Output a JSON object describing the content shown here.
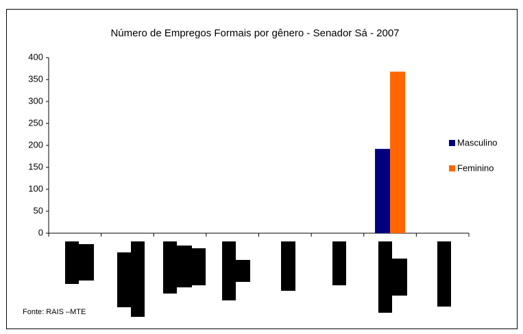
{
  "chart_data": {
    "type": "bar",
    "title": "Número de Empregos Formais por gênero - Senador Sá - 2007",
    "categories": [
      null,
      null,
      null,
      null,
      null,
      null,
      null,
      null
    ],
    "series": [
      {
        "name": "Masculino",
        "color": "#000080",
        "values": [
          0,
          0,
          0,
          0,
          0,
          0,
          192,
          0
        ]
      },
      {
        "name": "Feminino",
        "color": "#ff6600",
        "values": [
          0,
          0,
          0,
          0,
          0,
          0,
          368,
          0
        ]
      }
    ],
    "ylim": [
      0,
      400
    ],
    "yticks": [
      0,
      50,
      100,
      150,
      200,
      250,
      300,
      350,
      400
    ],
    "legend": "right",
    "source": "Fonte: RAIS –MTE"
  }
}
